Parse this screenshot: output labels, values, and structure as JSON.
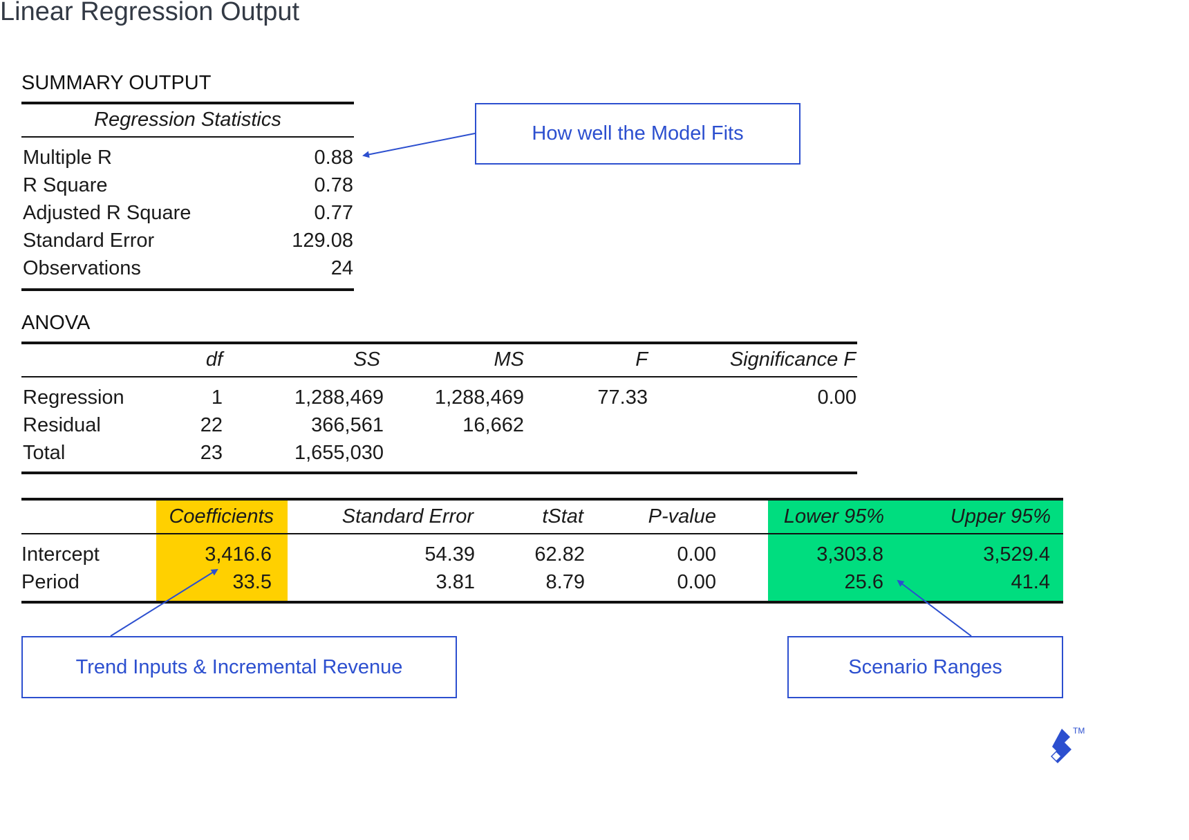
{
  "title": "Linear Regression Output",
  "summary": {
    "label": "SUMMARY OUTPUT",
    "stats_header": "Regression Statistics",
    "rows": [
      {
        "label": "Multiple R",
        "value": "0.88"
      },
      {
        "label": "R Square",
        "value": "0.78"
      },
      {
        "label": "Adjusted R Square",
        "value": "0.77"
      },
      {
        "label": "Standard Error",
        "value": "129.08"
      },
      {
        "label": "Observations",
        "value": "24"
      }
    ]
  },
  "anova": {
    "label": "ANOVA",
    "headers": [
      "",
      "df",
      "SS",
      "MS",
      "F",
      "Significance F"
    ],
    "rows": [
      [
        "Regression",
        "1",
        "1,288,469",
        "1,288,469",
        "77.33",
        "0.00"
      ],
      [
        "Residual",
        "22",
        "366,561",
        "16,662",
        "",
        ""
      ],
      [
        "Total",
        "23",
        "1,655,030",
        "",
        "",
        ""
      ]
    ]
  },
  "coefficients": {
    "headers": [
      "",
      "Coefficients",
      "Standard Error",
      "tStat",
      "P-value",
      "Lower 95%",
      "Upper 95%"
    ],
    "rows": [
      [
        "Intercept",
        "3,416.6",
        "54.39",
        "62.82",
        "0.00",
        "3,303.8",
        "3,529.4"
      ],
      [
        "Period",
        "33.5",
        "3.81",
        "8.79",
        "0.00",
        "25.6",
        "41.4"
      ]
    ]
  },
  "callouts": {
    "model_fit": "How well the Model Fits",
    "trend": "Trend Inputs & Incremental Revenue",
    "scenario": "Scenario Ranges"
  },
  "colors": {
    "accent_blue": "#2c4fcf",
    "coefficient_highlight": "#ffd000",
    "confidence_highlight": "#00dd7f",
    "logo": "#2c4fcf"
  },
  "logo": {
    "icon": "toptal-logo-icon",
    "tm": "TM"
  }
}
